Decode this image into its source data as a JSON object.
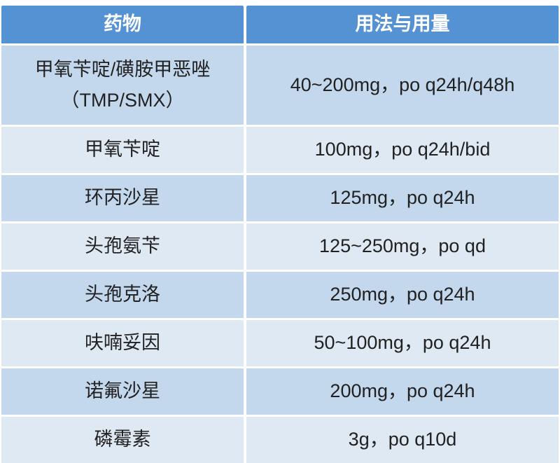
{
  "colors": {
    "page-bg": "#ffffff",
    "header-bg": "#5592d3",
    "header-text": "#ffffff",
    "row-odd-bg": "#c3d7ed",
    "row-even-bg": "#dfe9f4",
    "text-color": "#212121"
  },
  "table": {
    "columns": [
      {
        "label": "药物"
      },
      {
        "label": "用法与用量"
      }
    ],
    "rows": [
      {
        "drug": "甲氧苄啶/磺胺甲恶唑\n（TMP/SMX）",
        "dosage": "40~200mg，po q24h/q48h"
      },
      {
        "drug": "甲氧苄啶",
        "dosage": "100mg，po q24h/bid"
      },
      {
        "drug": "环丙沙星",
        "dosage": "125mg，po q24h"
      },
      {
        "drug": "头孢氨苄",
        "dosage": "125~250mg，po qd"
      },
      {
        "drug": "头孢克洛",
        "dosage": "250mg，po q24h"
      },
      {
        "drug": "呋喃妥因",
        "dosage": "50~100mg，po q24h"
      },
      {
        "drug": "诺氟沙星",
        "dosage": "200mg，po q24h"
      },
      {
        "drug": "磷霉素",
        "dosage": "3g，po q10d"
      }
    ]
  },
  "chart_data": {
    "type": "table",
    "title": "",
    "columns": [
      "药物",
      "用法与用量"
    ],
    "rows": [
      [
        "甲氧苄啶/磺胺甲恶唑（TMP/SMX）",
        "40~200mg，po q24h/q48h"
      ],
      [
        "甲氧苄啶",
        "100mg，po q24h/bid"
      ],
      [
        "环丙沙星",
        "125mg，po q24h"
      ],
      [
        "头孢氨苄",
        "125~250mg，po qd"
      ],
      [
        "头孢克洛",
        "250mg，po q24h"
      ],
      [
        "呋喃妥因",
        "50~100mg，po q24h"
      ],
      [
        "诺氟沙星",
        "200mg，po q24h"
      ],
      [
        "磷霉素",
        "3g，po q10d"
      ]
    ]
  }
}
